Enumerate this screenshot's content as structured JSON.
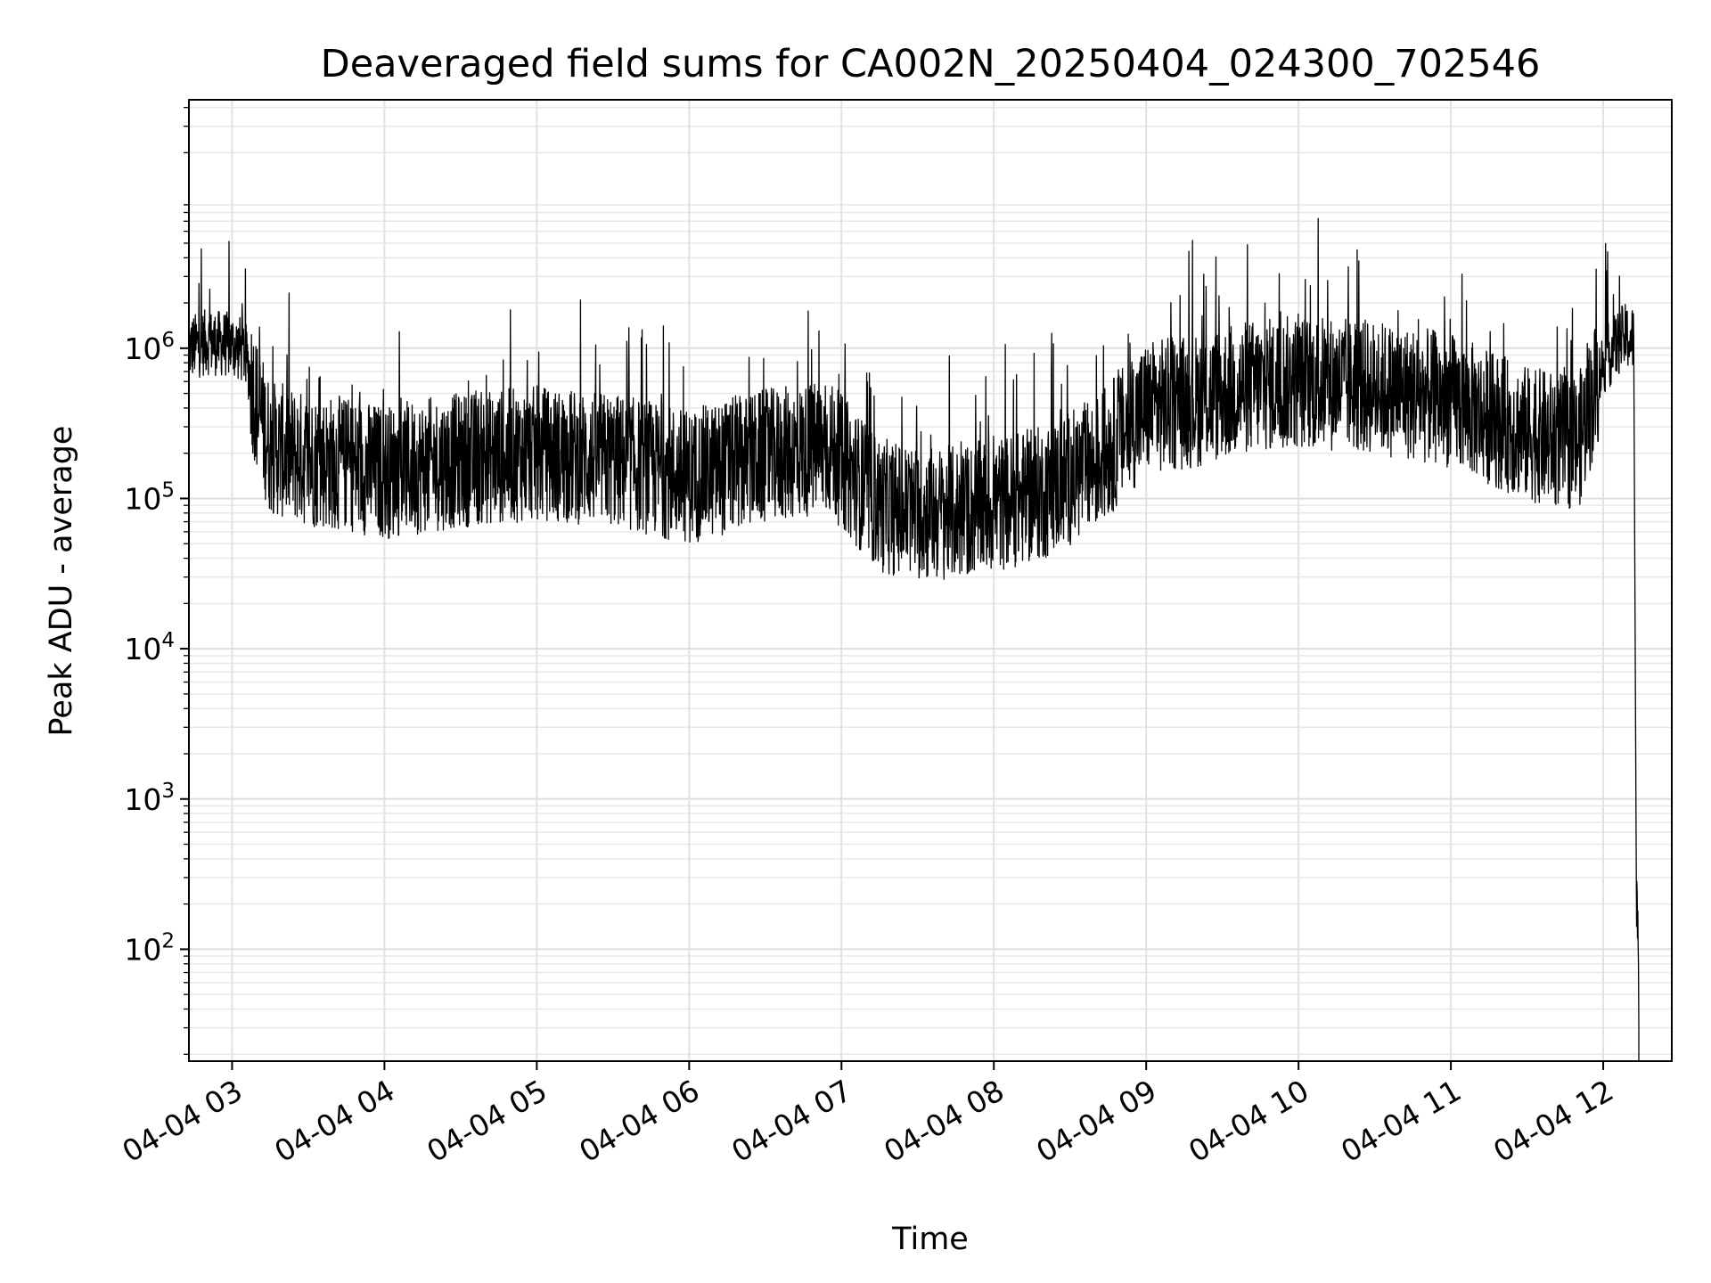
{
  "chart_data": {
    "type": "line",
    "title": "Deaveraged field sums for CA002N_20250404_024300_702546",
    "xlabel": "Time",
    "ylabel": "Peak ADU - average",
    "yscale": "log",
    "ylim": [
      18,
      45000000
    ],
    "xlim": [
      "2025-04-04 02:43",
      "2025-04-04 12:27"
    ],
    "grid": "major and minor",
    "line_color": "#000000",
    "x_ticks": [
      "04-04 03",
      "04-04 04",
      "04-04 05",
      "04-04 06",
      "04-04 07",
      "04-04 08",
      "04-04 09",
      "04-04 10",
      "04-04 11",
      "04-04 12"
    ],
    "y_ticks": [
      {
        "base": "10",
        "exp": "2"
      },
      {
        "base": "10",
        "exp": "3"
      },
      {
        "base": "10",
        "exp": "4"
      },
      {
        "base": "10",
        "exp": "5"
      },
      {
        "base": "10",
        "exp": "6"
      }
    ],
    "series": [
      {
        "x": [
          "2025-04-04 02:43",
          "2025-04-04 02:50",
          "2025-04-04 03:00",
          "2025-04-04 03:05",
          "2025-04-04 03:10",
          "2025-04-04 03:15",
          "2025-04-04 03:30",
          "2025-04-04 03:45",
          "2025-04-04 04:00",
          "2025-04-04 04:30",
          "2025-04-04 05:00",
          "2025-04-04 05:30",
          "2025-04-04 06:00",
          "2025-04-04 06:30",
          "2025-04-04 06:55",
          "2025-04-04 07:15",
          "2025-04-04 07:30",
          "2025-04-04 07:45",
          "2025-04-04 08:00",
          "2025-04-04 08:20",
          "2025-04-04 08:40",
          "2025-04-04 09:00",
          "2025-04-04 09:20",
          "2025-04-04 09:40",
          "2025-04-04 10:00",
          "2025-04-04 10:30",
          "2025-04-04 11:00",
          "2025-04-04 11:30",
          "2025-04-04 11:50",
          "2025-04-04 12:00",
          "2025-04-04 12:08",
          "2025-04-04 12:12",
          "2025-04-04 12:13",
          "2025-04-04 12:14"
        ],
        "y": [
          1000000,
          1100000,
          1050000,
          950000,
          400000,
          220000,
          180000,
          170000,
          150000,
          180000,
          200000,
          180000,
          140000,
          190000,
          220000,
          90000,
          80000,
          80000,
          90000,
          110000,
          170000,
          400000,
          450000,
          550000,
          600000,
          550000,
          450000,
          270000,
          230000,
          800000,
          1200000,
          1150000,
          400,
          30
        ]
      }
    ]
  }
}
